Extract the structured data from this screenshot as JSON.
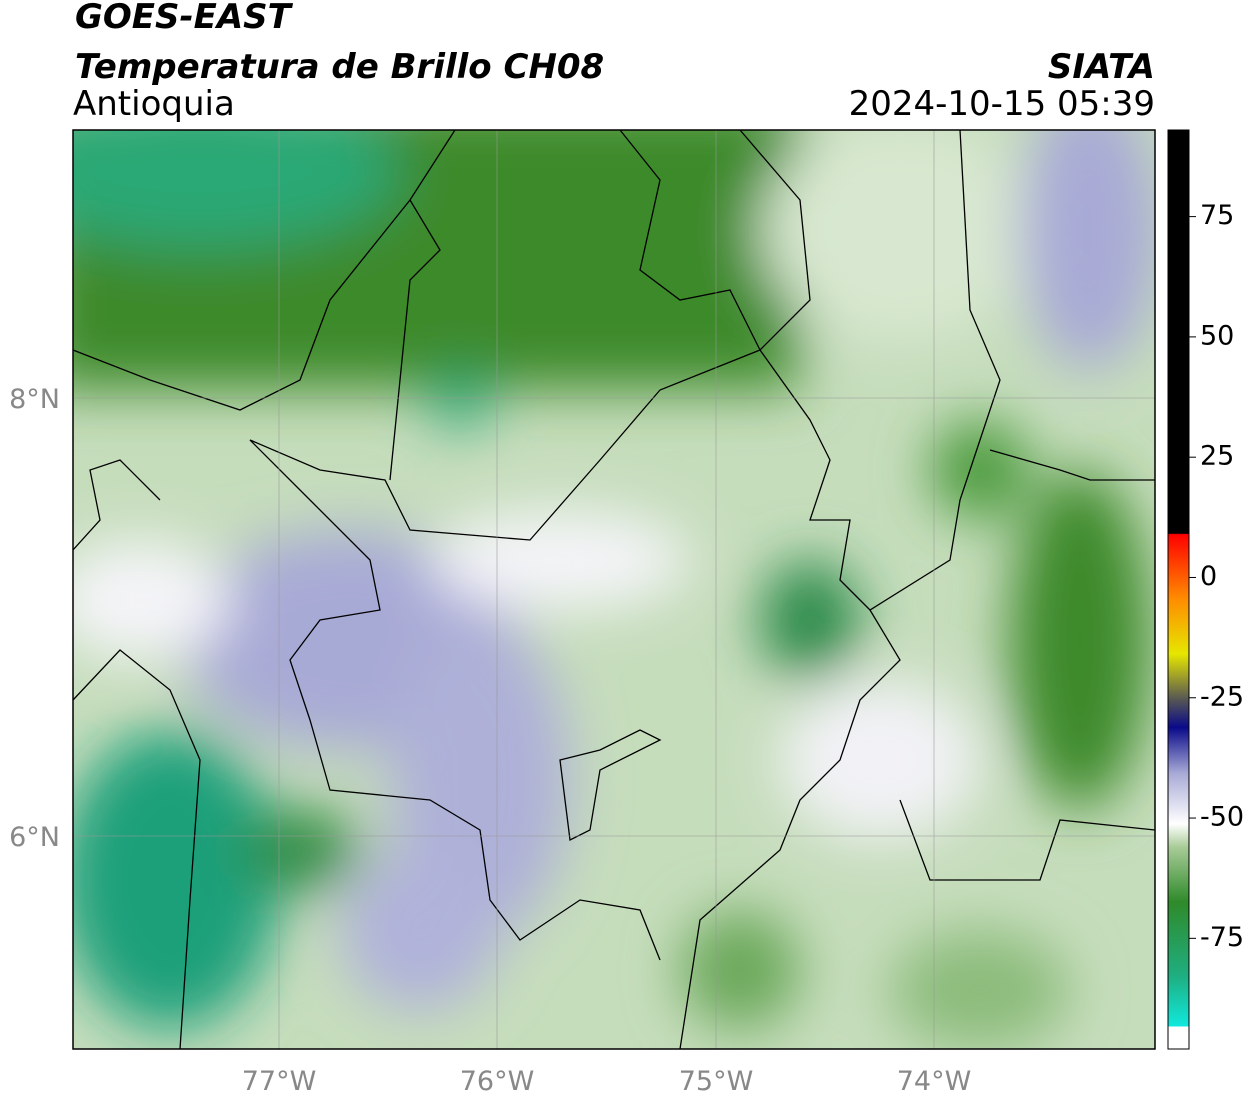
{
  "header": {
    "title": "GOES-EAST",
    "subtitle": "Temperatura de Brillo CH08",
    "region": "Antioquia",
    "source": "SIATA",
    "datetime": "2024-10-15 05:39"
  },
  "map": {
    "lon_labels": [
      "77°W",
      "76°W",
      "75°W",
      "74°W"
    ],
    "lat_labels": [
      "8°N",
      "6°N"
    ]
  },
  "colorbar": {
    "range": [
      -98,
      93
    ],
    "ticks": [
      75,
      50,
      25,
      0,
      -25,
      -50,
      -75
    ]
  }
}
